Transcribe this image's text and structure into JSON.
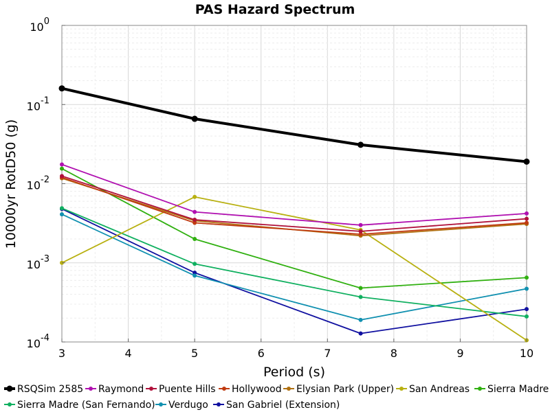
{
  "chart_data": {
    "type": "line",
    "title": "PAS Hazard Spectrum",
    "xlabel": "Period (s)",
    "ylabel": "10000yr RotD50 (g)",
    "xlim": [
      3,
      10
    ],
    "ylim": [
      0.0001,
      1
    ],
    "yscale": "log",
    "grid": true,
    "legend_position": "bottom",
    "x": [
      3,
      5,
      7.5,
      10
    ],
    "xticks": [
      "3",
      "4",
      "5",
      "6",
      "7",
      "8",
      "9",
      "10"
    ],
    "yticks": [
      {
        "base": "10",
        "exp": "0"
      },
      {
        "base": "10",
        "exp": "-1"
      },
      {
        "base": "10",
        "exp": "-2"
      },
      {
        "base": "10",
        "exp": "-3"
      },
      {
        "base": "10",
        "exp": "-4"
      }
    ],
    "series": [
      {
        "name": "RSQSim 2585",
        "color": "#000000",
        "values": [
          0.16,
          0.066,
          0.031,
          0.019
        ],
        "bold": true
      },
      {
        "name": "Raymond",
        "color": "#b010b0",
        "values": [
          0.0175,
          0.0044,
          0.003,
          0.0042
        ]
      },
      {
        "name": "Puente Hills",
        "color": "#b0103a",
        "values": [
          0.0125,
          0.0035,
          0.0025,
          0.0036
        ]
      },
      {
        "name": "Hollywood",
        "color": "#c03a10",
        "values": [
          0.012,
          0.0032,
          0.0023,
          0.0032
        ]
      },
      {
        "name": "Elysian Park (Upper)",
        "color": "#b07010",
        "values": [
          0.0117,
          0.0034,
          0.0022,
          0.0031
        ]
      },
      {
        "name": "San Andreas",
        "color": "#b8b010",
        "values": [
          0.001,
          0.0068,
          0.0026,
          0.000105
        ]
      },
      {
        "name": "Sierra Madre",
        "color": "#30b010",
        "values": [
          0.0155,
          0.002,
          0.00048,
          0.00065
        ]
      },
      {
        "name": "Sierra Madre (San Fernando)",
        "color": "#10b060",
        "values": [
          0.0049,
          0.00097,
          0.00037,
          0.00021
        ]
      },
      {
        "name": "Verdugo",
        "color": "#1090b0",
        "values": [
          0.0041,
          0.00069,
          0.00019,
          0.00047
        ]
      },
      {
        "name": "San Gabriel (Extension)",
        "color": "#1010a0",
        "values": [
          0.0048,
          0.00075,
          0.000128,
          0.00026
        ]
      }
    ]
  }
}
